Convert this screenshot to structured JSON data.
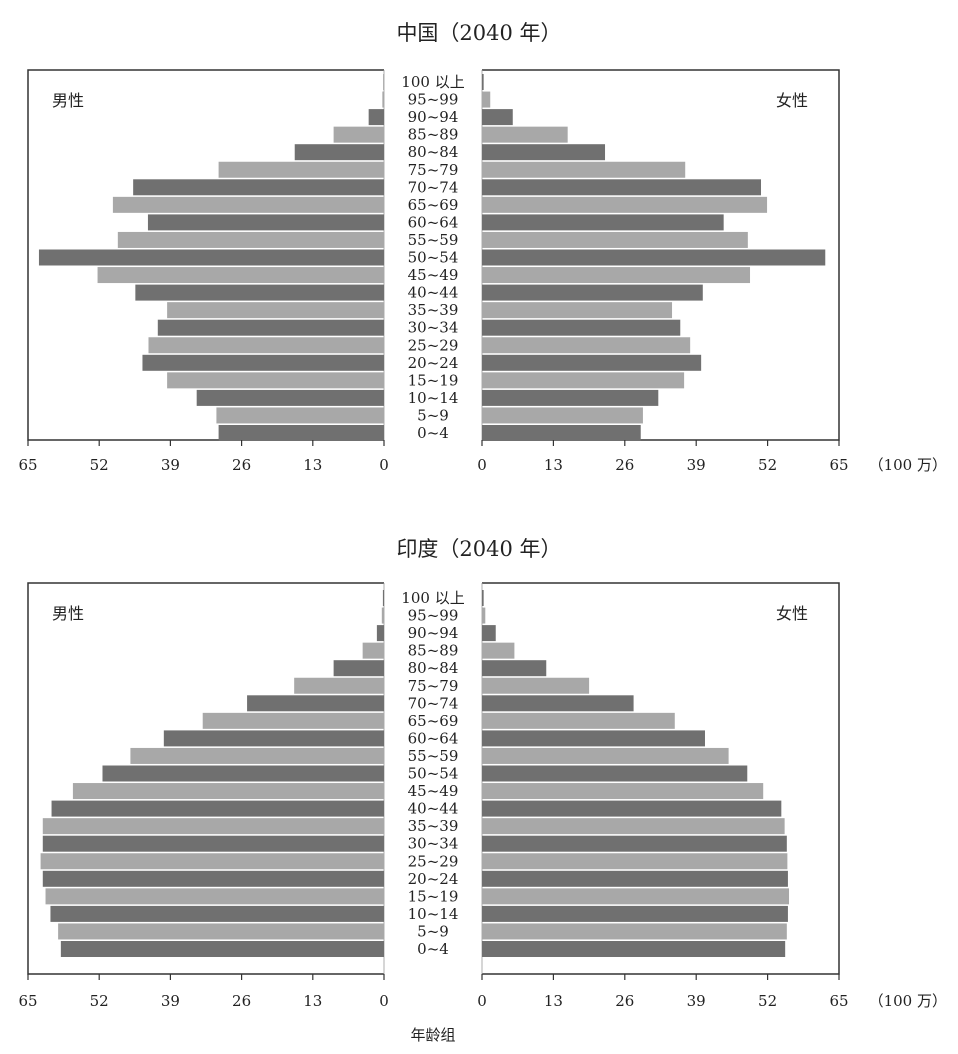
{
  "unit_label": "（100 万）",
  "age_axis_label": "年龄组",
  "age_groups": [
    "100 以上",
    "95~99",
    "90~94",
    "85~89",
    "80~84",
    "75~79",
    "70~74",
    "65~69",
    "60~64",
    "55~59",
    "50~54",
    "45~49",
    "40~44",
    "35~39",
    "30~34",
    "25~29",
    "20~24",
    "15~19",
    "10~14",
    "5~9",
    "0~4"
  ],
  "colors": {
    "dark": "#707070",
    "light": "#a8a8a8",
    "frame": "#333333"
  },
  "chart_data": [
    {
      "type": "bar",
      "title": "中国（2040 年）",
      "male_label": "男性",
      "female_label": "女性",
      "xlim": [
        0,
        65
      ],
      "ticks": [
        65,
        52,
        39,
        26,
        13,
        0
      ],
      "female_ticks": [
        0,
        13,
        26,
        39,
        52,
        65
      ],
      "series": [
        {
          "name": "男性",
          "values": [
            0.1,
            0.3,
            2.8,
            9.2,
            16.3,
            30.2,
            45.8,
            49.5,
            43.1,
            48.6,
            63.0,
            52.3,
            45.4,
            39.6,
            41.3,
            43.0,
            44.1,
            39.6,
            34.2,
            30.6,
            30.2
          ]
        },
        {
          "name": "女性",
          "values": [
            0.3,
            1.5,
            5.6,
            15.6,
            22.4,
            37.0,
            50.8,
            51.9,
            44.0,
            48.4,
            62.5,
            48.8,
            40.2,
            34.6,
            36.1,
            37.9,
            39.9,
            36.8,
            32.1,
            29.3,
            28.9
          ]
        }
      ]
    },
    {
      "type": "bar",
      "title": "印度（2040 年）",
      "male_label": "男性",
      "female_label": "女性",
      "xlim": [
        0,
        65
      ],
      "ticks": [
        65,
        52,
        39,
        26,
        13,
        0
      ],
      "female_ticks": [
        0,
        13,
        26,
        39,
        52,
        65
      ],
      "series": [
        {
          "name": "男性",
          "values": [
            0.2,
            0.4,
            1.3,
            3.9,
            9.2,
            16.4,
            25.0,
            33.1,
            40.2,
            46.3,
            51.4,
            56.8,
            60.7,
            62.3,
            62.3,
            62.7,
            62.3,
            61.8,
            60.9,
            59.5,
            59.0
          ]
        },
        {
          "name": "女性",
          "values": [
            0.3,
            0.6,
            2.5,
            5.9,
            11.7,
            19.5,
            27.6,
            35.1,
            40.6,
            44.9,
            48.3,
            51.2,
            54.5,
            55.1,
            55.5,
            55.6,
            55.7,
            55.9,
            55.7,
            55.5,
            55.2
          ]
        }
      ]
    }
  ]
}
